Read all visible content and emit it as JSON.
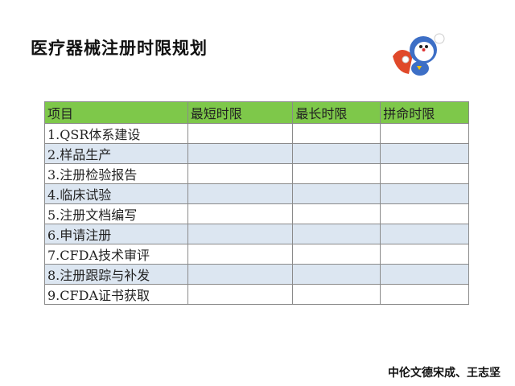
{
  "title": "医疗器械注册时限规划",
  "mascot_icon": "flying-superhero-cat-robot",
  "table": {
    "header_color": "#7ec84a",
    "alt_row_color": "#dce6f1",
    "headers": [
      "项目",
      "最短时限",
      "最长时限",
      "拼命时限"
    ],
    "rows": [
      {
        "item": "1.QSR体系建设"
      },
      {
        "item": "2.样品生产"
      },
      {
        "item": "3.注册检验报告"
      },
      {
        "item": "4.临床试验"
      },
      {
        "item": "5.注册文档编写"
      },
      {
        "item": "6.申请注册"
      },
      {
        "item": "7.CFDA技术审评"
      },
      {
        "item": "8.注册跟踪与补发"
      },
      {
        "item": "9.CFDA证书获取"
      }
    ]
  },
  "footer": "中伦文德宋成、王志坚"
}
